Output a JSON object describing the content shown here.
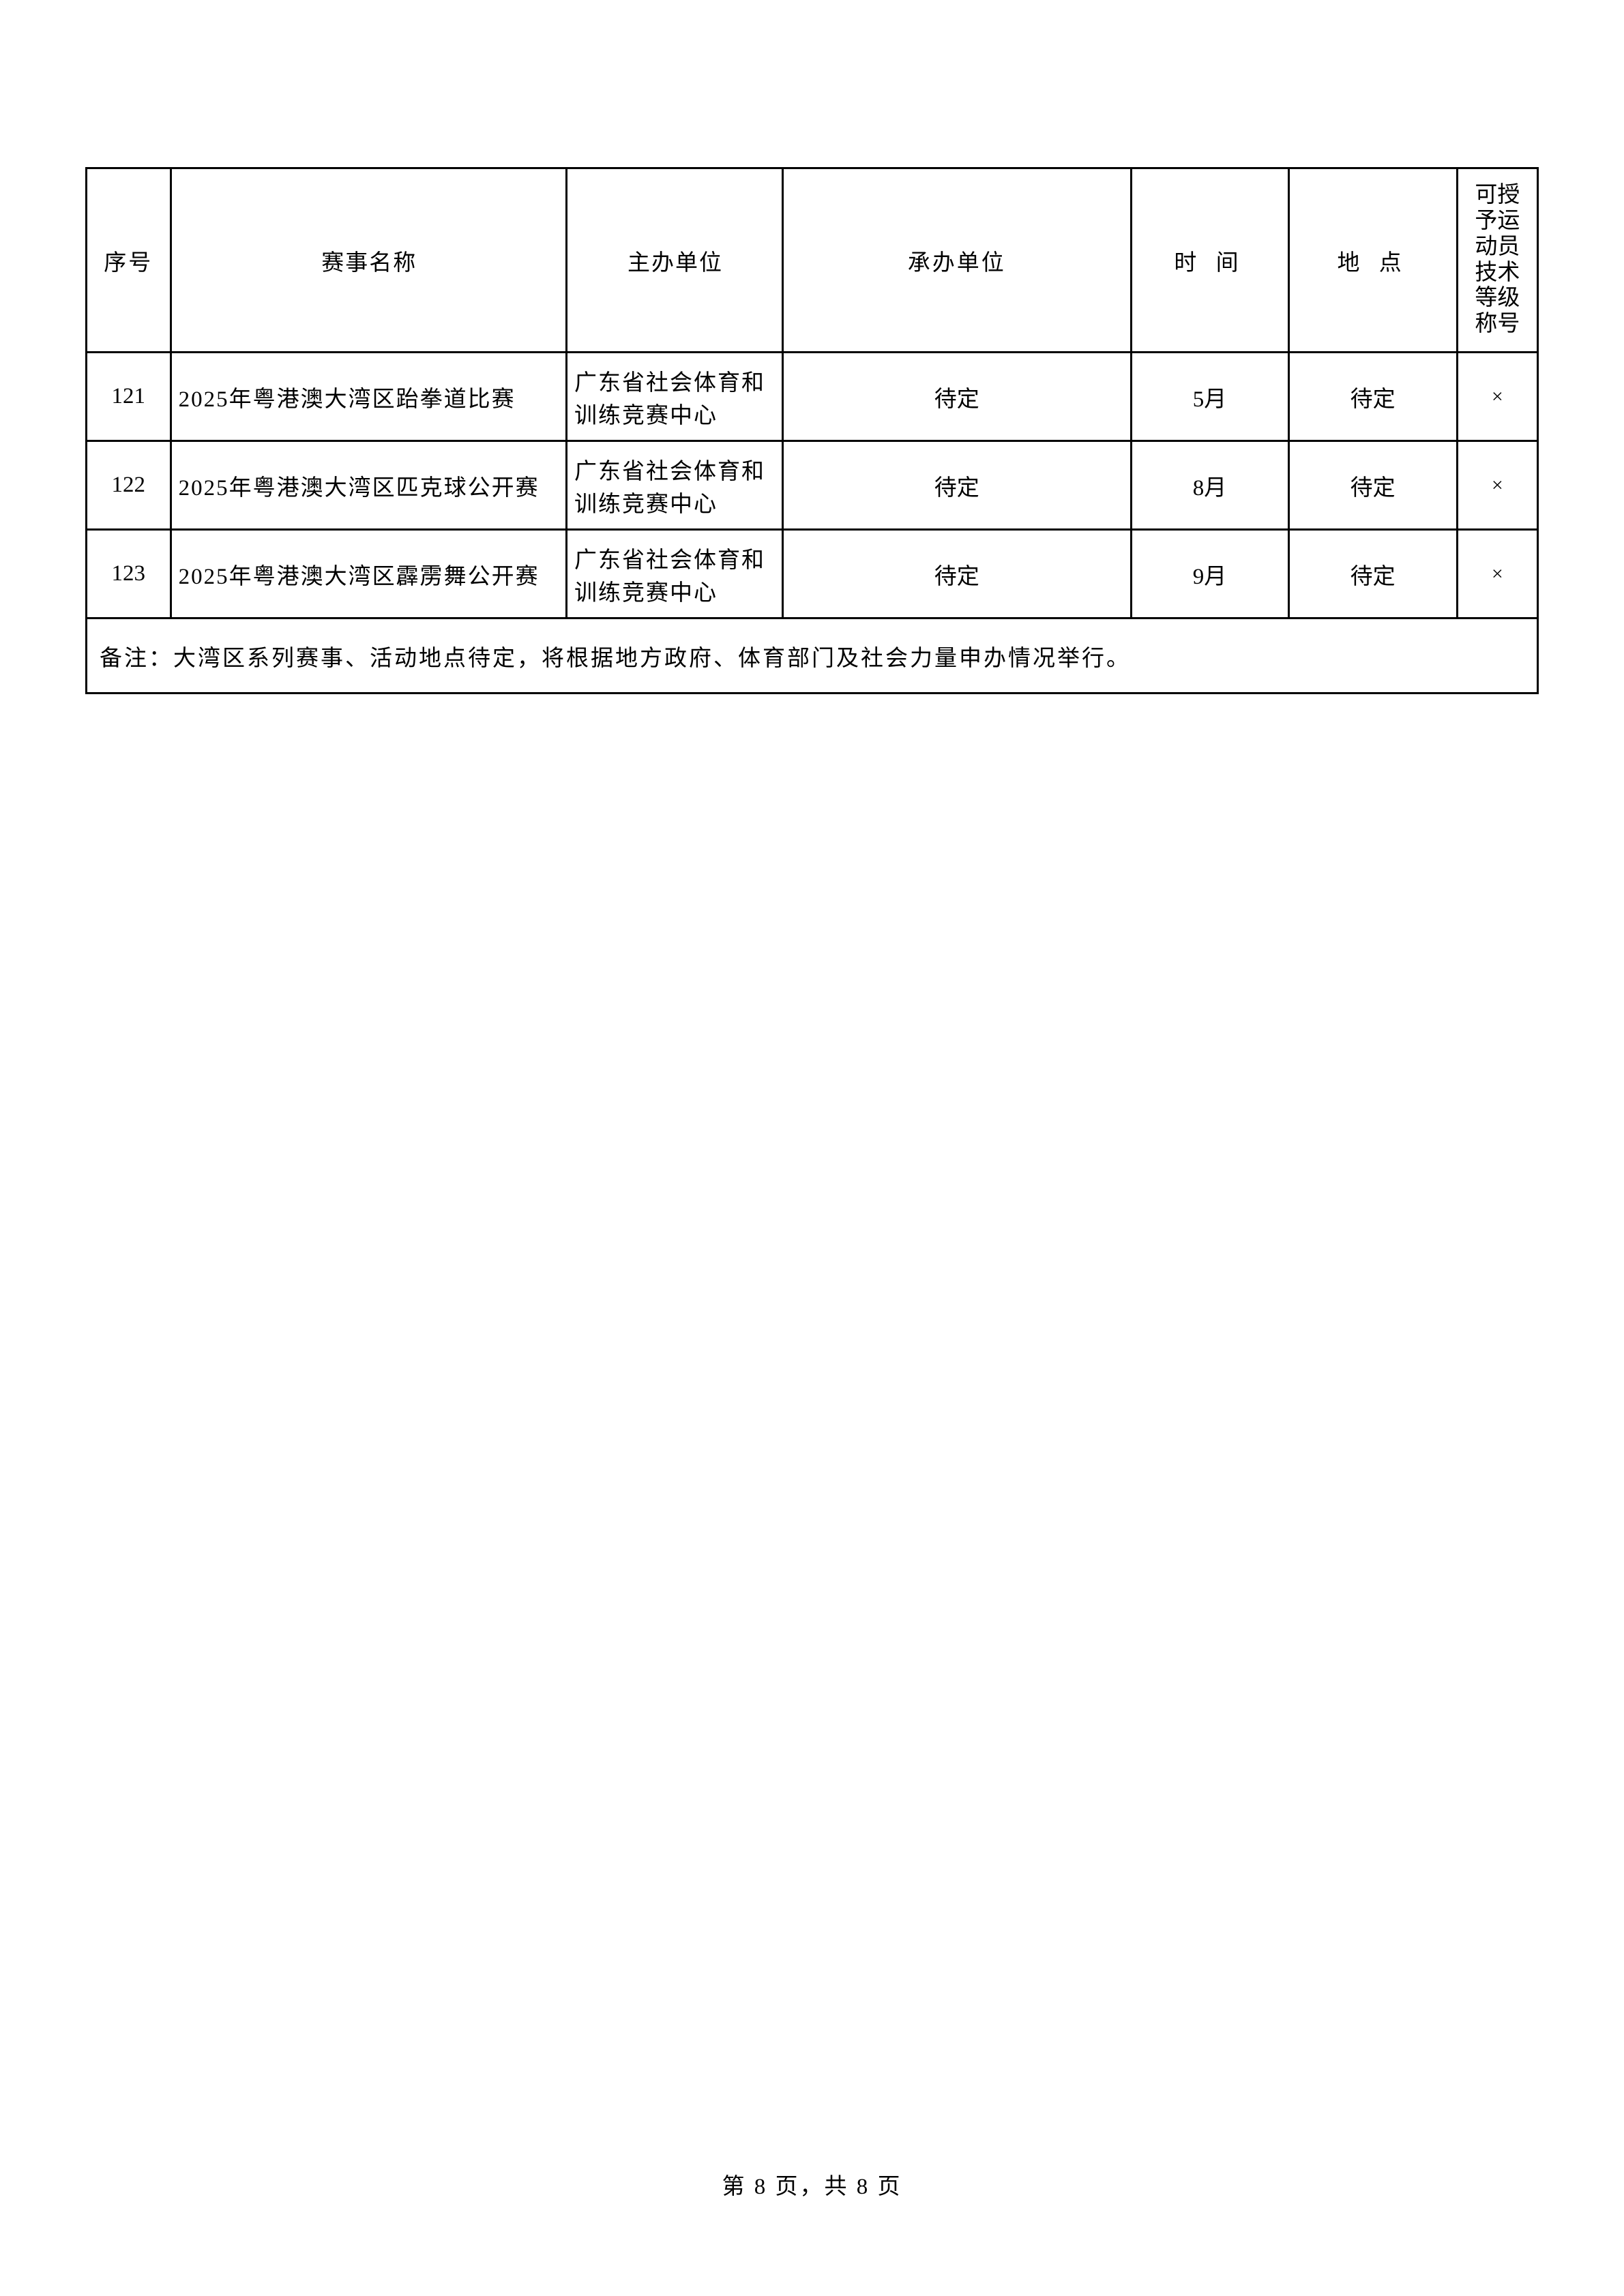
{
  "table": {
    "headers": {
      "num": "序号",
      "name": "赛事名称",
      "host": "主办单位",
      "org": "承办单位",
      "time": "时 间",
      "loc": "地 点",
      "grant": "可授予运动员技术等级称号"
    },
    "rows": [
      {
        "num": "121",
        "name": "2025年粤港澳大湾区跆拳道比赛",
        "host": "广东省社会体育和训练竞赛中心",
        "org": "待定",
        "time": "5月",
        "loc": "待定",
        "grant": "×"
      },
      {
        "num": "122",
        "name": "2025年粤港澳大湾区匹克球公开赛",
        "host": "广东省社会体育和训练竞赛中心",
        "org": "待定",
        "time": "8月",
        "loc": "待定",
        "grant": "×"
      },
      {
        "num": "123",
        "name": "2025年粤港澳大湾区霹雳舞公开赛",
        "host": "广东省社会体育和训练竞赛中心",
        "org": "待定",
        "time": "9月",
        "loc": "待定",
        "grant": "×"
      }
    ],
    "note": "备注：大湾区系列赛事、活动地点待定，将根据地方政府、体育部门及社会力量申办情况举行。"
  },
  "footer": {
    "text": "第 8 页，共 8 页"
  },
  "styling": {
    "border_color": "#000000",
    "border_width": 3,
    "background_color": "#ffffff",
    "text_color": "#000000",
    "font_size_body": 33,
    "font_family": "SimSun"
  }
}
